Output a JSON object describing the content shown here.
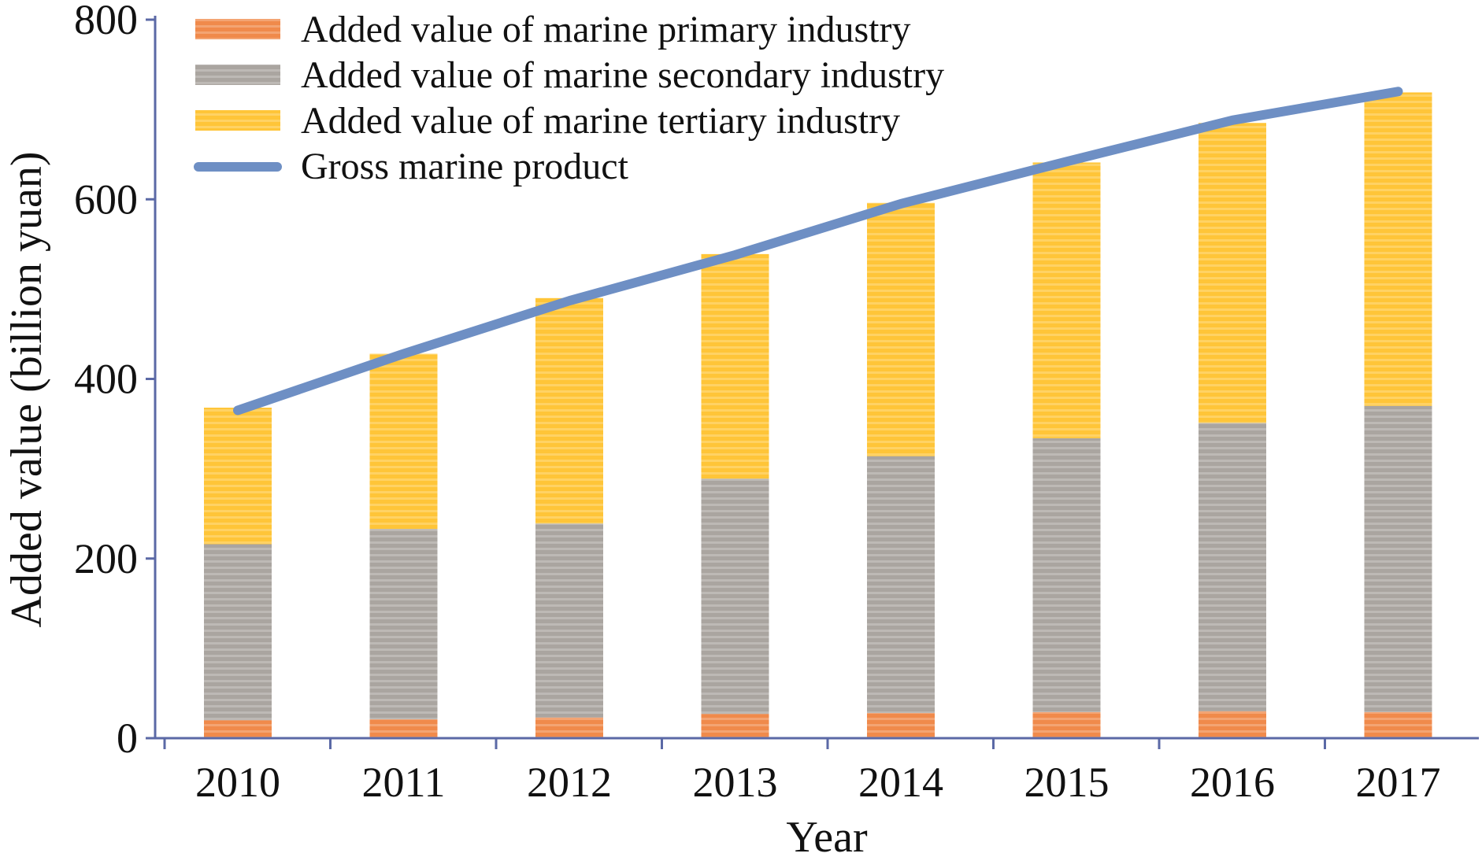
{
  "chart_data": {
    "type": "bar",
    "stacked": true,
    "categories": [
      "2010",
      "2011",
      "2012",
      "2013",
      "2014",
      "2015",
      "2016",
      "2017"
    ],
    "series": [
      {
        "name": "Added value of marine primary industry",
        "type": "bar",
        "color": "#f08a4b",
        "values": [
          20,
          21,
          23,
          27,
          28,
          29,
          30,
          29
        ]
      },
      {
        "name": "Added value of marine secondary industry",
        "type": "bar",
        "color": "#aaa5a0",
        "values": [
          196,
          212,
          216,
          262,
          286,
          305,
          321,
          341
        ]
      },
      {
        "name": "Added value of marine tertiary industry",
        "type": "bar",
        "color": "#ffc538",
        "values": [
          152,
          195,
          251,
          250,
          282,
          307,
          334,
          349
        ]
      },
      {
        "name": "Gross marine product",
        "type": "line",
        "color": "#6e8fc4",
        "values": [
          365,
          428,
          487,
          538,
          595,
          642,
          688,
          720
        ]
      }
    ],
    "xlabel": "Year",
    "ylabel": "Added value (billion yuan)",
    "ylim": [
      0,
      800
    ],
    "yticks": [
      "0",
      "200",
      "400",
      "600",
      "800"
    ],
    "grid": false,
    "legend_position": "top-left"
  }
}
